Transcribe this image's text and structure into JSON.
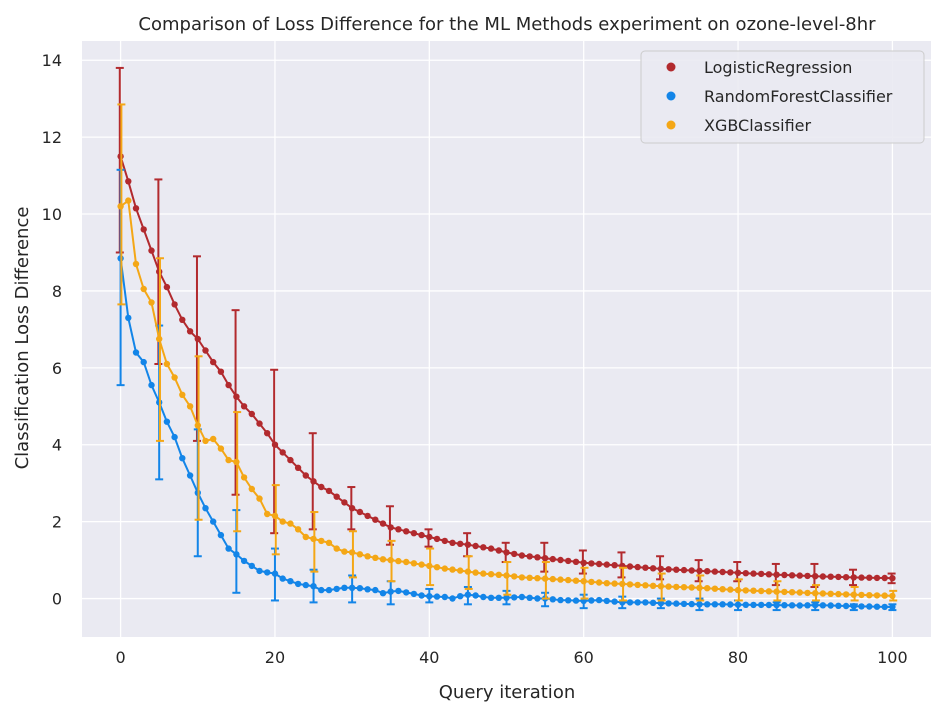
{
  "chart_data": {
    "type": "line",
    "title": "Comparison of Loss Difference for the ML Methods experiment on ozone-level-8hr",
    "xlabel": "Query iteration",
    "ylabel": "Classification Loss Difference",
    "xlim": [
      -5,
      105
    ],
    "ylim": [
      -1,
      14.5
    ],
    "xticks": [
      0,
      20,
      40,
      60,
      80,
      100
    ],
    "yticks": [
      0,
      2,
      4,
      6,
      8,
      10,
      12,
      14
    ],
    "grid": true,
    "legend_position": "top-right",
    "background": "#eaeaf2",
    "error_bar_every": 5,
    "series": [
      {
        "name": "LogisticRegression",
        "color": "#b22a2e",
        "y_anchors": [
          [
            0,
            11.5
          ],
          [
            1,
            10.85
          ],
          [
            2,
            10.15
          ],
          [
            3,
            9.6
          ],
          [
            4,
            9.05
          ],
          [
            5,
            8.5
          ],
          [
            6,
            8.1
          ],
          [
            7,
            7.65
          ],
          [
            8,
            7.25
          ],
          [
            9,
            6.95
          ],
          [
            10,
            6.75
          ],
          [
            11,
            6.45
          ],
          [
            12,
            6.15
          ],
          [
            13,
            5.9
          ],
          [
            14,
            5.55
          ],
          [
            15,
            5.25
          ],
          [
            16,
            5.0
          ],
          [
            17,
            4.8
          ],
          [
            18,
            4.55
          ],
          [
            19,
            4.3
          ],
          [
            20,
            4.0
          ],
          [
            21,
            3.8
          ],
          [
            22,
            3.6
          ],
          [
            23,
            3.4
          ],
          [
            24,
            3.2
          ],
          [
            25,
            3.05
          ],
          [
            26,
            2.9
          ],
          [
            27,
            2.8
          ],
          [
            28,
            2.65
          ],
          [
            29,
            2.5
          ],
          [
            30,
            2.35
          ],
          [
            32,
            2.15
          ],
          [
            34,
            1.95
          ],
          [
            35,
            1.85
          ],
          [
            37,
            1.75
          ],
          [
            40,
            1.6
          ],
          [
            43,
            1.45
          ],
          [
            45,
            1.4
          ],
          [
            48,
            1.3
          ],
          [
            50,
            1.2
          ],
          [
            52,
            1.12
          ],
          [
            55,
            1.05
          ],
          [
            58,
            0.98
          ],
          [
            60,
            0.93
          ],
          [
            65,
            0.85
          ],
          [
            70,
            0.77
          ],
          [
            75,
            0.72
          ],
          [
            80,
            0.67
          ],
          [
            85,
            0.62
          ],
          [
            90,
            0.58
          ],
          [
            95,
            0.55
          ],
          [
            100,
            0.53
          ]
        ],
        "error_bars": [
          [
            0,
            9.0,
            13.8
          ],
          [
            5,
            6.1,
            10.9
          ],
          [
            10,
            4.1,
            8.9
          ],
          [
            15,
            2.7,
            7.5
          ],
          [
            20,
            1.7,
            5.95
          ],
          [
            25,
            1.8,
            4.3
          ],
          [
            30,
            1.8,
            2.9
          ],
          [
            35,
            1.4,
            2.4
          ],
          [
            40,
            1.35,
            1.8
          ],
          [
            45,
            1.1,
            1.7
          ],
          [
            50,
            0.95,
            1.45
          ],
          [
            55,
            0.7,
            1.45
          ],
          [
            60,
            0.65,
            1.25
          ],
          [
            65,
            0.55,
            1.2
          ],
          [
            70,
            0.5,
            1.1
          ],
          [
            75,
            0.45,
            1.0
          ],
          [
            80,
            0.45,
            0.95
          ],
          [
            85,
            0.35,
            0.9
          ],
          [
            90,
            0.3,
            0.9
          ],
          [
            95,
            0.35,
            0.75
          ],
          [
            100,
            0.4,
            0.65
          ]
        ]
      },
      {
        "name": "RandomForestClassifier",
        "color": "#1385e8",
        "y_anchors": [
          [
            0,
            8.85
          ],
          [
            1,
            7.3
          ],
          [
            2,
            6.4
          ],
          [
            3,
            6.15
          ],
          [
            4,
            5.55
          ],
          [
            5,
            5.1
          ],
          [
            6,
            4.6
          ],
          [
            7,
            4.2
          ],
          [
            8,
            3.65
          ],
          [
            9,
            3.2
          ],
          [
            10,
            2.75
          ],
          [
            11,
            2.35
          ],
          [
            12,
            2.0
          ],
          [
            13,
            1.65
          ],
          [
            14,
            1.3
          ],
          [
            15,
            1.15
          ],
          [
            16,
            0.98
          ],
          [
            17,
            0.85
          ],
          [
            18,
            0.72
          ],
          [
            19,
            0.68
          ],
          [
            20,
            0.65
          ],
          [
            21,
            0.52
          ],
          [
            22,
            0.45
          ],
          [
            23,
            0.38
          ],
          [
            24,
            0.35
          ],
          [
            25,
            0.32
          ],
          [
            26,
            0.22
          ],
          [
            27,
            0.22
          ],
          [
            28,
            0.25
          ],
          [
            29,
            0.28
          ],
          [
            30,
            0.28
          ],
          [
            31,
            0.27
          ],
          [
            32,
            0.24
          ],
          [
            33,
            0.22
          ],
          [
            34,
            0.14
          ],
          [
            35,
            0.18
          ],
          [
            36,
            0.2
          ],
          [
            37,
            0.16
          ],
          [
            38,
            0.12
          ],
          [
            39,
            0.08
          ],
          [
            40,
            0.06
          ],
          [
            41,
            0.05
          ],
          [
            42,
            0.04
          ],
          [
            43,
            0.0
          ],
          [
            44,
            0.06
          ],
          [
            45,
            0.1
          ],
          [
            46,
            0.08
          ],
          [
            47,
            0.04
          ],
          [
            48,
            0.02
          ],
          [
            50,
            0.02
          ],
          [
            52,
            0.04
          ],
          [
            54,
            0.0
          ],
          [
            55,
            0.0
          ],
          [
            57,
            -0.04
          ],
          [
            60,
            -0.06
          ],
          [
            62,
            -0.04
          ],
          [
            65,
            -0.1
          ],
          [
            68,
            -0.1
          ],
          [
            70,
            -0.12
          ],
          [
            75,
            -0.15
          ],
          [
            78,
            -0.15
          ],
          [
            80,
            -0.16
          ],
          [
            85,
            -0.17
          ],
          [
            88,
            -0.18
          ],
          [
            90,
            -0.17
          ],
          [
            95,
            -0.2
          ],
          [
            100,
            -0.22
          ]
        ],
        "error_bars": [
          [
            0,
            5.55,
            11.15
          ],
          [
            5,
            3.1,
            7.1
          ],
          [
            10,
            1.1,
            4.4
          ],
          [
            15,
            0.15,
            2.3
          ],
          [
            20,
            -0.05,
            1.3
          ],
          [
            25,
            -0.1,
            0.75
          ],
          [
            30,
            -0.1,
            0.6
          ],
          [
            35,
            -0.15,
            0.45
          ],
          [
            40,
            -0.1,
            0.25
          ],
          [
            45,
            -0.15,
            0.3
          ],
          [
            50,
            -0.15,
            0.2
          ],
          [
            55,
            -0.2,
            0.15
          ],
          [
            60,
            -0.25,
            0.1
          ],
          [
            65,
            -0.25,
            0.05
          ],
          [
            70,
            -0.25,
            0.0
          ],
          [
            75,
            -0.3,
            0.0
          ],
          [
            80,
            -0.3,
            -0.05
          ],
          [
            85,
            -0.3,
            -0.1
          ],
          [
            90,
            -0.3,
            -0.1
          ],
          [
            95,
            -0.3,
            -0.15
          ],
          [
            100,
            -0.3,
            -0.15
          ]
        ]
      },
      {
        "name": "XGBClassifier",
        "color": "#f4a716",
        "y_anchors": [
          [
            0,
            10.2
          ],
          [
            1,
            10.35
          ],
          [
            2,
            8.7
          ],
          [
            3,
            8.05
          ],
          [
            4,
            7.7
          ],
          [
            5,
            6.75
          ],
          [
            6,
            6.1
          ],
          [
            7,
            5.75
          ],
          [
            8,
            5.3
          ],
          [
            9,
            5.0
          ],
          [
            10,
            4.5
          ],
          [
            11,
            4.1
          ],
          [
            12,
            4.15
          ],
          [
            13,
            3.9
          ],
          [
            14,
            3.6
          ],
          [
            15,
            3.55
          ],
          [
            16,
            3.15
          ],
          [
            17,
            2.85
          ],
          [
            18,
            2.6
          ],
          [
            19,
            2.2
          ],
          [
            20,
            2.15
          ],
          [
            21,
            2.0
          ],
          [
            22,
            1.95
          ],
          [
            23,
            1.8
          ],
          [
            24,
            1.6
          ],
          [
            25,
            1.55
          ],
          [
            26,
            1.5
          ],
          [
            27,
            1.45
          ],
          [
            28,
            1.3
          ],
          [
            29,
            1.22
          ],
          [
            30,
            1.2
          ],
          [
            32,
            1.1
          ],
          [
            34,
            1.02
          ],
          [
            35,
            1.0
          ],
          [
            37,
            0.95
          ],
          [
            40,
            0.85
          ],
          [
            42,
            0.78
          ],
          [
            45,
            0.7
          ],
          [
            47,
            0.65
          ],
          [
            50,
            0.6
          ],
          [
            52,
            0.55
          ],
          [
            55,
            0.52
          ],
          [
            58,
            0.48
          ],
          [
            60,
            0.45
          ],
          [
            63,
            0.4
          ],
          [
            65,
            0.38
          ],
          [
            70,
            0.32
          ],
          [
            75,
            0.28
          ],
          [
            80,
            0.22
          ],
          [
            85,
            0.18
          ],
          [
            90,
            0.14
          ],
          [
            95,
            0.1
          ],
          [
            100,
            0.07
          ]
        ],
        "error_bars": [
          [
            0,
            7.65,
            12.85
          ],
          [
            5,
            4.1,
            8.85
          ],
          [
            10,
            2.05,
            6.3
          ],
          [
            15,
            1.75,
            4.85
          ],
          [
            20,
            1.15,
            2.95
          ],
          [
            25,
            0.7,
            2.25
          ],
          [
            30,
            0.55,
            1.75
          ],
          [
            35,
            0.45,
            1.5
          ],
          [
            40,
            0.35,
            1.3
          ],
          [
            45,
            0.25,
            1.1
          ],
          [
            50,
            0.1,
            0.95
          ],
          [
            55,
            0.0,
            0.95
          ],
          [
            60,
            0.0,
            0.8
          ],
          [
            65,
            -0.05,
            0.8
          ],
          [
            70,
            -0.05,
            0.65
          ],
          [
            75,
            -0.05,
            0.6
          ],
          [
            80,
            -0.05,
            0.5
          ],
          [
            85,
            -0.05,
            0.45
          ],
          [
            90,
            -0.05,
            0.35
          ],
          [
            95,
            -0.05,
            0.3
          ],
          [
            100,
            -0.05,
            0.2
          ]
        ]
      }
    ]
  }
}
